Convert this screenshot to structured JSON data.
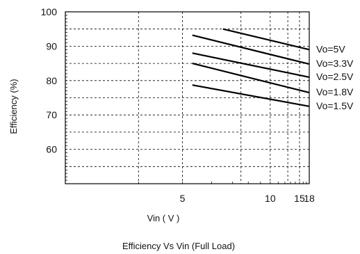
{
  "chart_data": {
    "type": "line",
    "title": "Efficiency  Vs Vin (Full Load)",
    "xlabel": "Vin ( V )",
    "ylabel": "Efficiency (%)",
    "xlim": [
      3,
      18
    ],
    "ylim": [
      50,
      100
    ],
    "x_ticks": [
      5,
      10,
      15,
      18
    ],
    "y_ticks": [
      60,
      70,
      80,
      90,
      100
    ],
    "grid": true,
    "series": [
      {
        "name": "Vo=5V",
        "x": [
          6.5,
          18
        ],
        "y": [
          95.0,
          89.0
        ]
      },
      {
        "name": "Vo=3.3V",
        "x": [
          5.3,
          18
        ],
        "y": [
          93.2,
          84.8
        ]
      },
      {
        "name": "Vo=2.5V",
        "x": [
          5.3,
          18
        ],
        "y": [
          88.0,
          81.0
        ]
      },
      {
        "name": "Vo=1.8V",
        "x": [
          5.3,
          18
        ],
        "y": [
          85.0,
          76.5
        ]
      },
      {
        "name": "Vo=1.5V",
        "x": [
          5.3,
          18
        ],
        "y": [
          78.7,
          72.5
        ]
      }
    ]
  }
}
